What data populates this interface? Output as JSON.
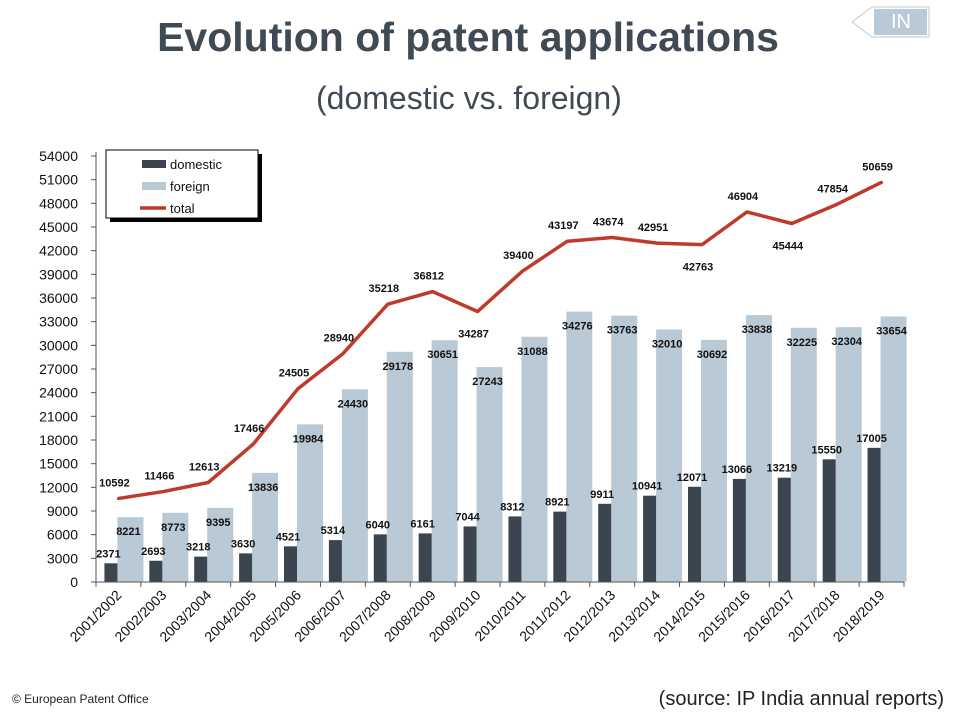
{
  "page": {
    "title": "Evolution of patent applications",
    "subtitle": "(domestic vs. foreign)",
    "country_tag": "IN",
    "copyright": "© European Patent Office",
    "source": "(source: IP India annual reports)"
  },
  "colors": {
    "domestic": "#3b444f",
    "foreign": "#b9c9d6",
    "total": "#c0392b",
    "tag": "#b9c9d6"
  },
  "chart_data": {
    "type": "bar",
    "title": "Evolution of patent applications",
    "subtitle": "(domestic vs. foreign)",
    "xlabel": "",
    "ylabel": "",
    "ylim": [
      0,
      54000
    ],
    "yticks": [
      0,
      3000,
      6000,
      9000,
      12000,
      15000,
      18000,
      21000,
      24000,
      27000,
      30000,
      33000,
      36000,
      39000,
      42000,
      45000,
      48000,
      51000,
      54000
    ],
    "legend_position": "top-left",
    "categories": [
      "2001/2002",
      "2002/2003",
      "2003/2004",
      "2004/2005",
      "2005/2006",
      "2006/2007",
      "2007/2008",
      "2008/2009",
      "2009/2010",
      "2010/2011",
      "2011/2012",
      "2012/2013",
      "2013/2014",
      "2014/2015",
      "2015/2016",
      "2016/2017",
      "2017/2018",
      "2018/2019"
    ],
    "series": [
      {
        "name": "domestic",
        "kind": "bar",
        "values": [
          2371,
          2693,
          3218,
          3630,
          4521,
          5314,
          6040,
          6161,
          7044,
          8312,
          8921,
          9911,
          10941,
          12071,
          13066,
          13219,
          15550,
          17005
        ]
      },
      {
        "name": "foreign",
        "kind": "bar",
        "values": [
          8221,
          8773,
          9395,
          13836,
          19984,
          24430,
          29178,
          30651,
          27243,
          31088,
          34276,
          33763,
          32010,
          30692,
          33838,
          32225,
          32304,
          33654
        ]
      },
      {
        "name": "total",
        "kind": "line",
        "values": [
          10592,
          11466,
          12613,
          17466,
          24505,
          28940,
          35218,
          36812,
          34287,
          39400,
          43197,
          43674,
          42951,
          42763,
          46904,
          45444,
          47854,
          50659
        ]
      }
    ]
  }
}
